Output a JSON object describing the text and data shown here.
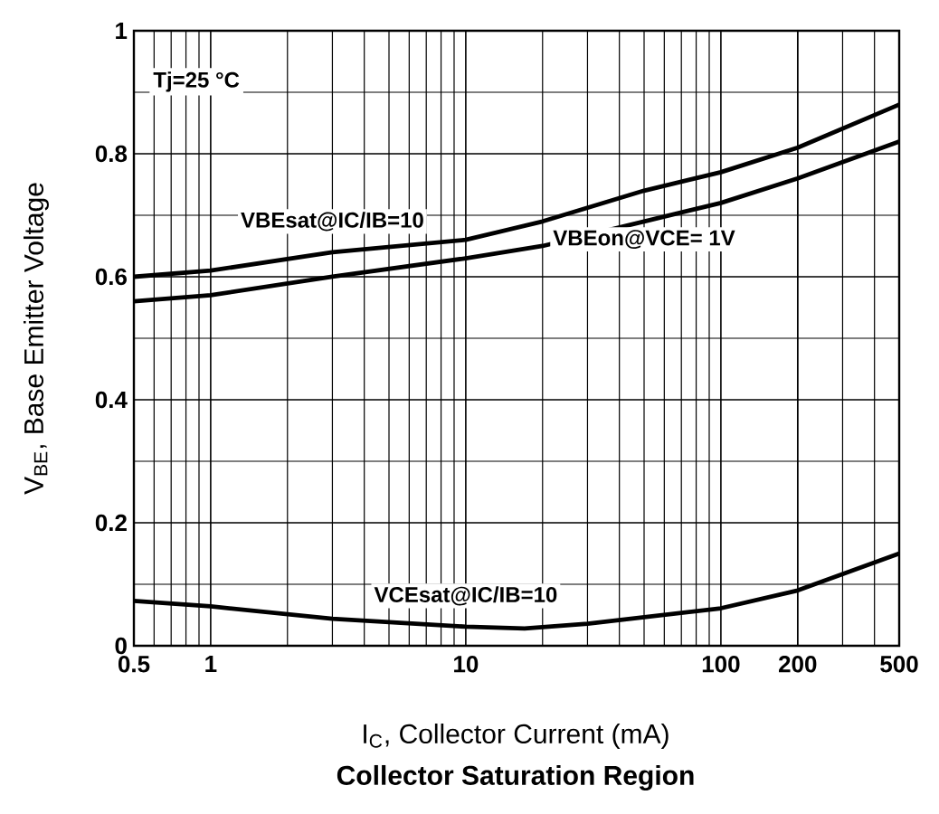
{
  "chart_data": {
    "type": "line",
    "title": "**Collector Saturation Region**",
    "xlabel": "I$_{C}$, Collector Current (mA)",
    "ylabel": "V$_{BE}$, Base Emitter Voltage",
    "annotations": [
      "Tj=25 °C"
    ],
    "log": "x",
    "grid": true,
    "legend": false,
    "marker": "none",
    "line_style": "solid",
    "xlim": [
      0.5,
      500
    ],
    "ylim": [
      0,
      1
    ],
    "xticks": [
      0.5,
      1,
      10,
      100,
      200,
      500
    ],
    "yticks": [
      0,
      0.2,
      0.4,
      0.6,
      0.8,
      1
    ],
    "x": [
      0.5,
      1,
      3,
      10,
      20,
      50,
      100,
      200,
      500
    ],
    "series": [
      {
        "name": "VBEsat@IC/IB=10",
        "color": "#000000",
        "values": [
          0.6,
          0.61,
          0.64,
          0.66,
          0.69,
          0.74,
          0.77,
          0.81,
          0.88
        ]
      },
      {
        "name": "VBEon@VCE= 1V",
        "color": "#000000",
        "values": [
          0.56,
          0.57,
          0.6,
          0.63,
          0.65,
          0.69,
          0.72,
          0.76,
          0.82
        ]
      },
      {
        "name": "VCEsat@IC/IB=10",
        "color": "#000000",
        "x": [
          0.5,
          1,
          3,
          10,
          17,
          30,
          100,
          200,
          500
        ],
        "values": [
          0.073,
          0.064,
          0.044,
          0.031,
          0.028,
          0.036,
          0.061,
          0.09,
          0.15
        ]
      }
    ]
  }
}
